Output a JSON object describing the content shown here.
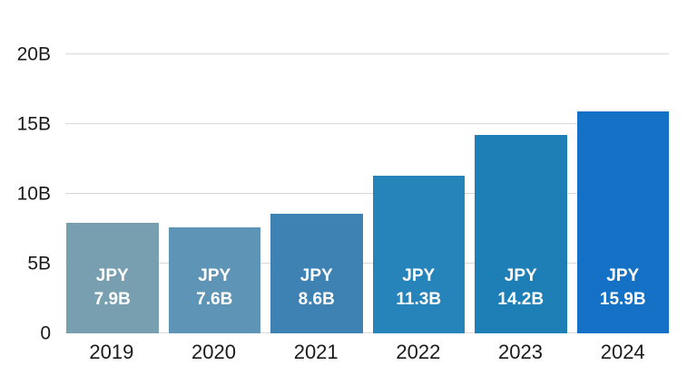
{
  "chart_data": {
    "type": "bar",
    "title": "",
    "categories": [
      "2019",
      "2020",
      "2021",
      "2022",
      "2023",
      "2024"
    ],
    "values": [
      7.9,
      7.6,
      8.6,
      11.3,
      14.2,
      15.9
    ],
    "bars": [
      {
        "year": "2019",
        "value": 7.9,
        "label_line1": "JPY",
        "label_line2": "7.9B",
        "color": "#779fb0"
      },
      {
        "year": "2020",
        "value": 7.6,
        "label_line1": "JPY",
        "label_line2": "7.6B",
        "color": "#5e95b7"
      },
      {
        "year": "2021",
        "value": 8.6,
        "label_line1": "JPY",
        "label_line2": "8.6B",
        "color": "#3e82b4"
      },
      {
        "year": "2022",
        "value": 11.3,
        "label_line1": "JPY",
        "label_line2": "11.3B",
        "color": "#2684ba"
      },
      {
        "year": "2023",
        "value": 14.2,
        "label_line1": "JPY",
        "label_line2": "14.2B",
        "color": "#1d7fb5"
      },
      {
        "year": "2024",
        "value": 15.9,
        "label_line1": "JPY",
        "label_line2": "15.9B",
        "color": "#1471c5"
      }
    ],
    "y_axis": {
      "max": 20,
      "ticks": [
        {
          "value": 0,
          "label": "0"
        },
        {
          "value": 5,
          "label": "5B"
        },
        {
          "value": 10,
          "label": "10B"
        },
        {
          "value": 15,
          "label": "15B"
        },
        {
          "value": 20,
          "label": "20B"
        }
      ]
    },
    "ylim": [
      0,
      20
    ],
    "grid": "horizontal",
    "legend": null,
    "colors": {
      "gridline": "#d9d9d9",
      "axis_text": "#1a1a1a",
      "bar_label_text": "#ffffff",
      "background": "#ffffff"
    }
  }
}
